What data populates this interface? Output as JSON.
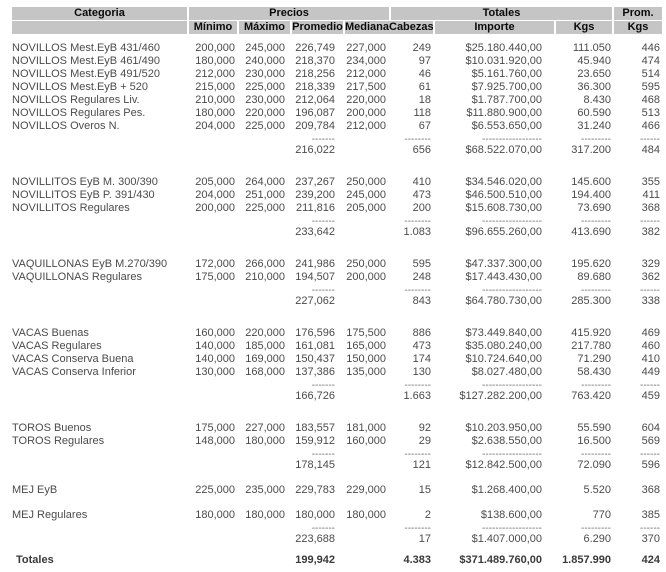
{
  "colors": {
    "header_bg": "#c5c5c5",
    "header_text": "#0b0b0b",
    "body_text": "#4b4b4b",
    "dash_color": "#707070"
  },
  "header": {
    "categoria": "Categoria",
    "precios": "Precios",
    "totales": "Totales",
    "prom": "Prom.",
    "sub": [
      "Mínimo",
      "Máximo",
      "Promedio",
      "Mediana",
      "Cabezas",
      "Importe",
      "Kgs",
      "Kgs"
    ]
  },
  "dashes": {
    "prom": "-------",
    "cab": "--------",
    "imp": "------------------",
    "kgs": "---------",
    "pk": "------"
  },
  "groups": [
    {
      "name": "NOVILLOS",
      "rows": [
        {
          "cat": "NOVILLOS Mest.EyB 431/460",
          "min": "200,000",
          "max": "245,000",
          "prom": "226,749",
          "med": "227,000",
          "cab": "249",
          "imp": "$25.180.440,00",
          "kgs": "111.050",
          "pk": "446"
        },
        {
          "cat": "NOVILLOS Mest.EyB 461/490",
          "min": "180,000",
          "max": "240,000",
          "prom": "218,370",
          "med": "234,000",
          "cab": "97",
          "imp": "$10.031.920,00",
          "kgs": "45.940",
          "pk": "474"
        },
        {
          "cat": "NOVILLOS Mest.EyB 491/520",
          "min": "212,000",
          "max": "230,000",
          "prom": "218,256",
          "med": "212,000",
          "cab": "46",
          "imp": "$5.161.760,00",
          "kgs": "23.650",
          "pk": "514"
        },
        {
          "cat": "NOVILLOS Mest.EyB + 520",
          "min": "215,000",
          "max": "225,000",
          "prom": "218,339",
          "med": "217,500",
          "cab": "61",
          "imp": "$7.925.700,00",
          "kgs": "36.300",
          "pk": "595"
        },
        {
          "cat": "NOVILLOS Regulares Liv.",
          "min": "210,000",
          "max": "230,000",
          "prom": "212,064",
          "med": "220,000",
          "cab": "18",
          "imp": "$1.787.700,00",
          "kgs": "8.430",
          "pk": "468"
        },
        {
          "cat": "NOVILLOS Regulares Pes.",
          "min": "180,000",
          "max": "220,000",
          "prom": "196,087",
          "med": "200,000",
          "cab": "118",
          "imp": "$11.880.900,00",
          "kgs": "60.590",
          "pk": "513"
        },
        {
          "cat": "NOVILLOS Overos N.",
          "min": "204,000",
          "max": "225,000",
          "prom": "209,784",
          "med": "212,000",
          "cab": "67",
          "imp": "$6.553.650,00",
          "kgs": "31.240",
          "pk": "466"
        }
      ],
      "subtotal": {
        "prom": "216,022",
        "cab": "656",
        "imp": "$68.522.070,00",
        "kgs": "317.200",
        "pk": "484"
      }
    },
    {
      "name": "NOVILLITOS",
      "rows": [
        {
          "cat": "NOVILLITOS EyB M. 300/390",
          "min": "205,000",
          "max": "264,000",
          "prom": "237,267",
          "med": "250,000",
          "cab": "410",
          "imp": "$34.546.020,00",
          "kgs": "145.600",
          "pk": "355"
        },
        {
          "cat": "NOVILLITOS EyB P. 391/430",
          "min": "204,000",
          "max": "251,000",
          "prom": "239,200",
          "med": "245,000",
          "cab": "473",
          "imp": "$46.500.510,00",
          "kgs": "194.400",
          "pk": "411"
        },
        {
          "cat": "NOVILLITOS Regulares",
          "min": "200,000",
          "max": "225,000",
          "prom": "211,816",
          "med": "205,000",
          "cab": "200",
          "imp": "$15.608.730,00",
          "kgs": "73.690",
          "pk": "368"
        }
      ],
      "subtotal": {
        "prom": "233,642",
        "cab": "1.083",
        "imp": "$96.655.260,00",
        "kgs": "413.690",
        "pk": "382"
      }
    },
    {
      "name": "VAQUILLONAS",
      "rows": [
        {
          "cat": "VAQUILLONAS EyB M.270/390",
          "min": "172,000",
          "max": "266,000",
          "prom": "241,986",
          "med": "250,000",
          "cab": "595",
          "imp": "$47.337.300,00",
          "kgs": "195.620",
          "pk": "329"
        },
        {
          "cat": "VAQUILLONAS Regulares",
          "min": "175,000",
          "max": "210,000",
          "prom": "194,507",
          "med": "200,000",
          "cab": "248",
          "imp": "$17.443.430,00",
          "kgs": "89.680",
          "pk": "362"
        }
      ],
      "subtotal": {
        "prom": "227,062",
        "cab": "843",
        "imp": "$64.780.730,00",
        "kgs": "285.300",
        "pk": "338"
      }
    },
    {
      "name": "VACAS",
      "rows": [
        {
          "cat": "VACAS Buenas",
          "min": "160,000",
          "max": "220,000",
          "prom": "176,596",
          "med": "175,500",
          "cab": "886",
          "imp": "$73.449.840,00",
          "kgs": "415.920",
          "pk": "469"
        },
        {
          "cat": "VACAS Regulares",
          "min": "140,000",
          "max": "185,000",
          "prom": "161,081",
          "med": "165,000",
          "cab": "473",
          "imp": "$35.080.240,00",
          "kgs": "217.780",
          "pk": "460"
        },
        {
          "cat": "VACAS Conserva Buena",
          "min": "140,000",
          "max": "169,000",
          "prom": "150,437",
          "med": "150,000",
          "cab": "174",
          "imp": "$10.724.640,00",
          "kgs": "71.290",
          "pk": "410"
        },
        {
          "cat": "VACAS Conserva Inferior",
          "min": "130,000",
          "max": "168,000",
          "prom": "137,386",
          "med": "135,000",
          "cab": "130",
          "imp": "$8.027.480,00",
          "kgs": "58.430",
          "pk": "449"
        }
      ],
      "subtotal": {
        "prom": "166,726",
        "cab": "1.663",
        "imp": "$127.282.200,00",
        "kgs": "763.420",
        "pk": "459"
      }
    },
    {
      "name": "TOROS",
      "rows": [
        {
          "cat": "TOROS Buenos",
          "min": "175,000",
          "max": "227,000",
          "prom": "183,557",
          "med": "181,000",
          "cab": "92",
          "imp": "$10.203.950,00",
          "kgs": "55.590",
          "pk": "604"
        },
        {
          "cat": "TOROS Regulares",
          "min": "148,000",
          "max": "180,000",
          "prom": "159,912",
          "med": "160,000",
          "cab": "29",
          "imp": "$2.638.550,00",
          "kgs": "16.500",
          "pk": "569"
        }
      ],
      "subtotal": {
        "prom": "178,145",
        "cab": "121",
        "imp": "$12.842.500,00",
        "kgs": "72.090",
        "pk": "596"
      }
    },
    {
      "name": "MEJ EyB",
      "rows": [
        {
          "cat": "MEJ EyB",
          "min": "225,000",
          "max": "235,000",
          "prom": "229,783",
          "med": "229,000",
          "cab": "15",
          "imp": "$1.268.400,00",
          "kgs": "5.520",
          "pk": "368"
        }
      ],
      "subtotal": null
    },
    {
      "name": "MEJ Regulares",
      "rows": [
        {
          "cat": "MEJ Regulares",
          "min": "180,000",
          "max": "180,000",
          "prom": "180,000",
          "med": "180,000",
          "cab": "2",
          "imp": "$138.600,00",
          "kgs": "770",
          "pk": "385"
        }
      ],
      "subtotal": {
        "prom": "223,688",
        "cab": "17",
        "imp": "$1.407.000,00",
        "kgs": "6.290",
        "pk": "370"
      }
    }
  ],
  "totals": {
    "label": "Totales",
    "prom": "199,942",
    "cab": "4.383",
    "imp": "$371.489.760,00",
    "kgs": "1.857.990",
    "pk": "424"
  }
}
